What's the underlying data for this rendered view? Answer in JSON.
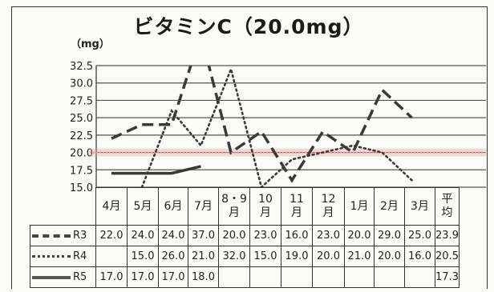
{
  "title": "ビタミンC（20.0mg）",
  "unit": "（mg）",
  "colors": {
    "line": "#3a3a3a",
    "reference": "#e89a9a",
    "grid": "#555555"
  },
  "chart_data": {
    "type": "line",
    "title": "ビタミンC（20.0mg）",
    "ylabel": "（mg）",
    "ylim": [
      15.0,
      32.5
    ],
    "yticks": [
      "32.5",
      "30.0",
      "27.5",
      "25.0",
      "22.5",
      "20.0",
      "17.5",
      "15.0"
    ],
    "reference_line": 20.0,
    "grid": true,
    "categories": [
      "4月",
      "5月",
      "6月",
      "7月",
      "8・9月",
      "10月",
      "11月",
      "12月",
      "1月",
      "2月",
      "3月",
      "平均"
    ],
    "category_display": [
      [
        "4月"
      ],
      [
        "5月"
      ],
      [
        "6月"
      ],
      [
        "7月"
      ],
      [
        "8・9",
        "月"
      ],
      [
        "10",
        "月"
      ],
      [
        "11",
        "月"
      ],
      [
        "12",
        "月"
      ],
      [
        "1月"
      ],
      [
        "2月"
      ],
      [
        "3月"
      ],
      [
        "平",
        "均"
      ]
    ],
    "series": [
      {
        "name": "R3",
        "style": "dash",
        "values": [
          22.0,
          24.0,
          24.0,
          37.0,
          20.0,
          23.0,
          16.0,
          23.0,
          20.0,
          29.0,
          25.0,
          23.9
        ],
        "labels": [
          "22.0",
          "24.0",
          "24.0",
          "37.0",
          "20.0",
          "23.0",
          "16.0",
          "23.0",
          "20.0",
          "29.0",
          "25.0",
          "23.9"
        ]
      },
      {
        "name": "R4",
        "style": "dot",
        "values": [
          null,
          15.0,
          26.0,
          21.0,
          32.0,
          15.0,
          19.0,
          20.0,
          21.0,
          20.0,
          16.0,
          20.5
        ],
        "labels": [
          "",
          "15.0",
          "26.0",
          "21.0",
          "32.0",
          "15.0",
          "19.0",
          "20.0",
          "21.0",
          "20.0",
          "16.0",
          "20.5"
        ]
      },
      {
        "name": "R5",
        "style": "solid",
        "values": [
          17.0,
          17.0,
          17.0,
          18.0,
          null,
          null,
          null,
          null,
          null,
          null,
          null,
          17.3
        ],
        "labels": [
          "17.0",
          "17.0",
          "17.0",
          "18.0",
          "",
          "",
          "",
          "",
          "",
          "",
          "",
          "17.3"
        ]
      }
    ]
  }
}
